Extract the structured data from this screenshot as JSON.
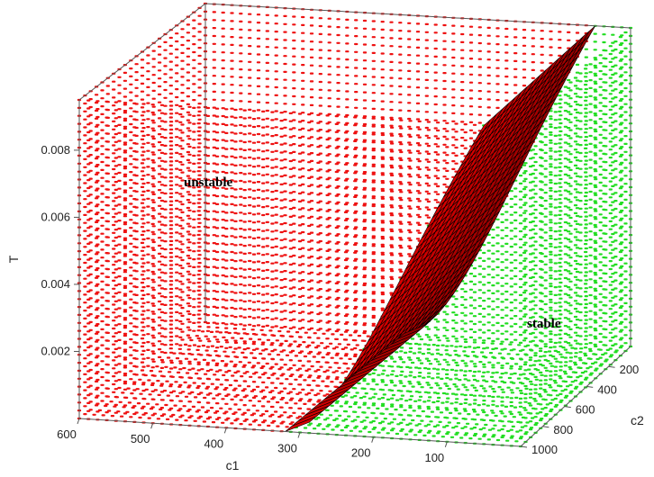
{
  "chart_data": {
    "type": "scatter",
    "title": "",
    "xlabel": "c1",
    "ylabel": "c2",
    "zlabel": "T",
    "c1_range": [
      0,
      600
    ],
    "c2_range": [
      0,
      1000
    ],
    "T_range": [
      0,
      0.0095
    ],
    "c1_ticks": [
      "600",
      "500",
      "400",
      "300",
      "200",
      "100"
    ],
    "c2_ticks": [
      "200",
      "400",
      "600",
      "800",
      "1000"
    ],
    "T_ticks": [
      "0.008",
      "0.006",
      "0.004",
      "0.002"
    ],
    "grid": false,
    "series": [
      {
        "marker": "dots",
        "color": "#ee1111"
      },
      {
        "marker": "dots",
        "color": "#22dd22"
      },
      {
        "marker": "surface",
        "color": "#cc0000",
        "edge_color": "#000000"
      }
    ],
    "annotations": [
      {
        "text": "unstable",
        "c1": 450,
        "c2": 300,
        "T": 0.0065
      },
      {
        "text": "stable",
        "c1": 80,
        "c2": 700,
        "T": 0.003
      }
    ]
  }
}
